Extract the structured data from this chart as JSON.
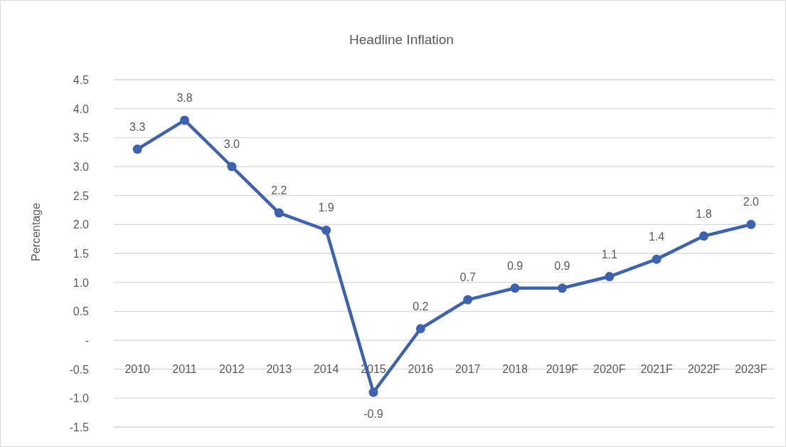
{
  "chart_data": {
    "type": "line",
    "title": "Headline Inflation",
    "ylabel": "Percentage",
    "categories": [
      "2010",
      "2011",
      "2012",
      "2013",
      "2014",
      "2015",
      "2016",
      "2017",
      "2018",
      "2019F",
      "2020F",
      "2021F",
      "2022F",
      "2023F"
    ],
    "series": [
      {
        "color": "#3f62ad",
        "values": [
          3.3,
          3.8,
          3.0,
          2.2,
          1.9,
          -0.9,
          0.2,
          0.7,
          0.9,
          0.9,
          1.1,
          1.4,
          1.8,
          2.0
        ]
      }
    ],
    "value_labels": [
      "3.3",
      "3.8",
      "3.0",
      "2.2",
      "1.9",
      "-0.9",
      "0.2",
      "0.7",
      "0.9",
      "0.9",
      "1.1",
      "1.4",
      "1.8",
      "2.0"
    ],
    "ylim": [
      -1.5,
      4.5
    ],
    "yticks": [
      {
        "value": -1.5,
        "label": "-1.5"
      },
      {
        "value": -1,
        "label": "-1.0"
      },
      {
        "value": -0.5,
        "label": "-0.5"
      },
      {
        "value": 0,
        "label": "-"
      },
      {
        "value": 0.5,
        "label": "0.5"
      },
      {
        "value": 1,
        "label": "1.0"
      },
      {
        "value": 1.5,
        "label": "1.5"
      },
      {
        "value": 2,
        "label": "2.0"
      },
      {
        "value": 2.5,
        "label": "2.5"
      },
      {
        "value": 3,
        "label": "3.0"
      },
      {
        "value": 3.5,
        "label": "3.5"
      },
      {
        "value": 4,
        "label": "4.0"
      },
      {
        "value": 4.5,
        "label": "4.5"
      }
    ],
    "grid": "y",
    "marker": "circle",
    "line_style": "solid"
  }
}
